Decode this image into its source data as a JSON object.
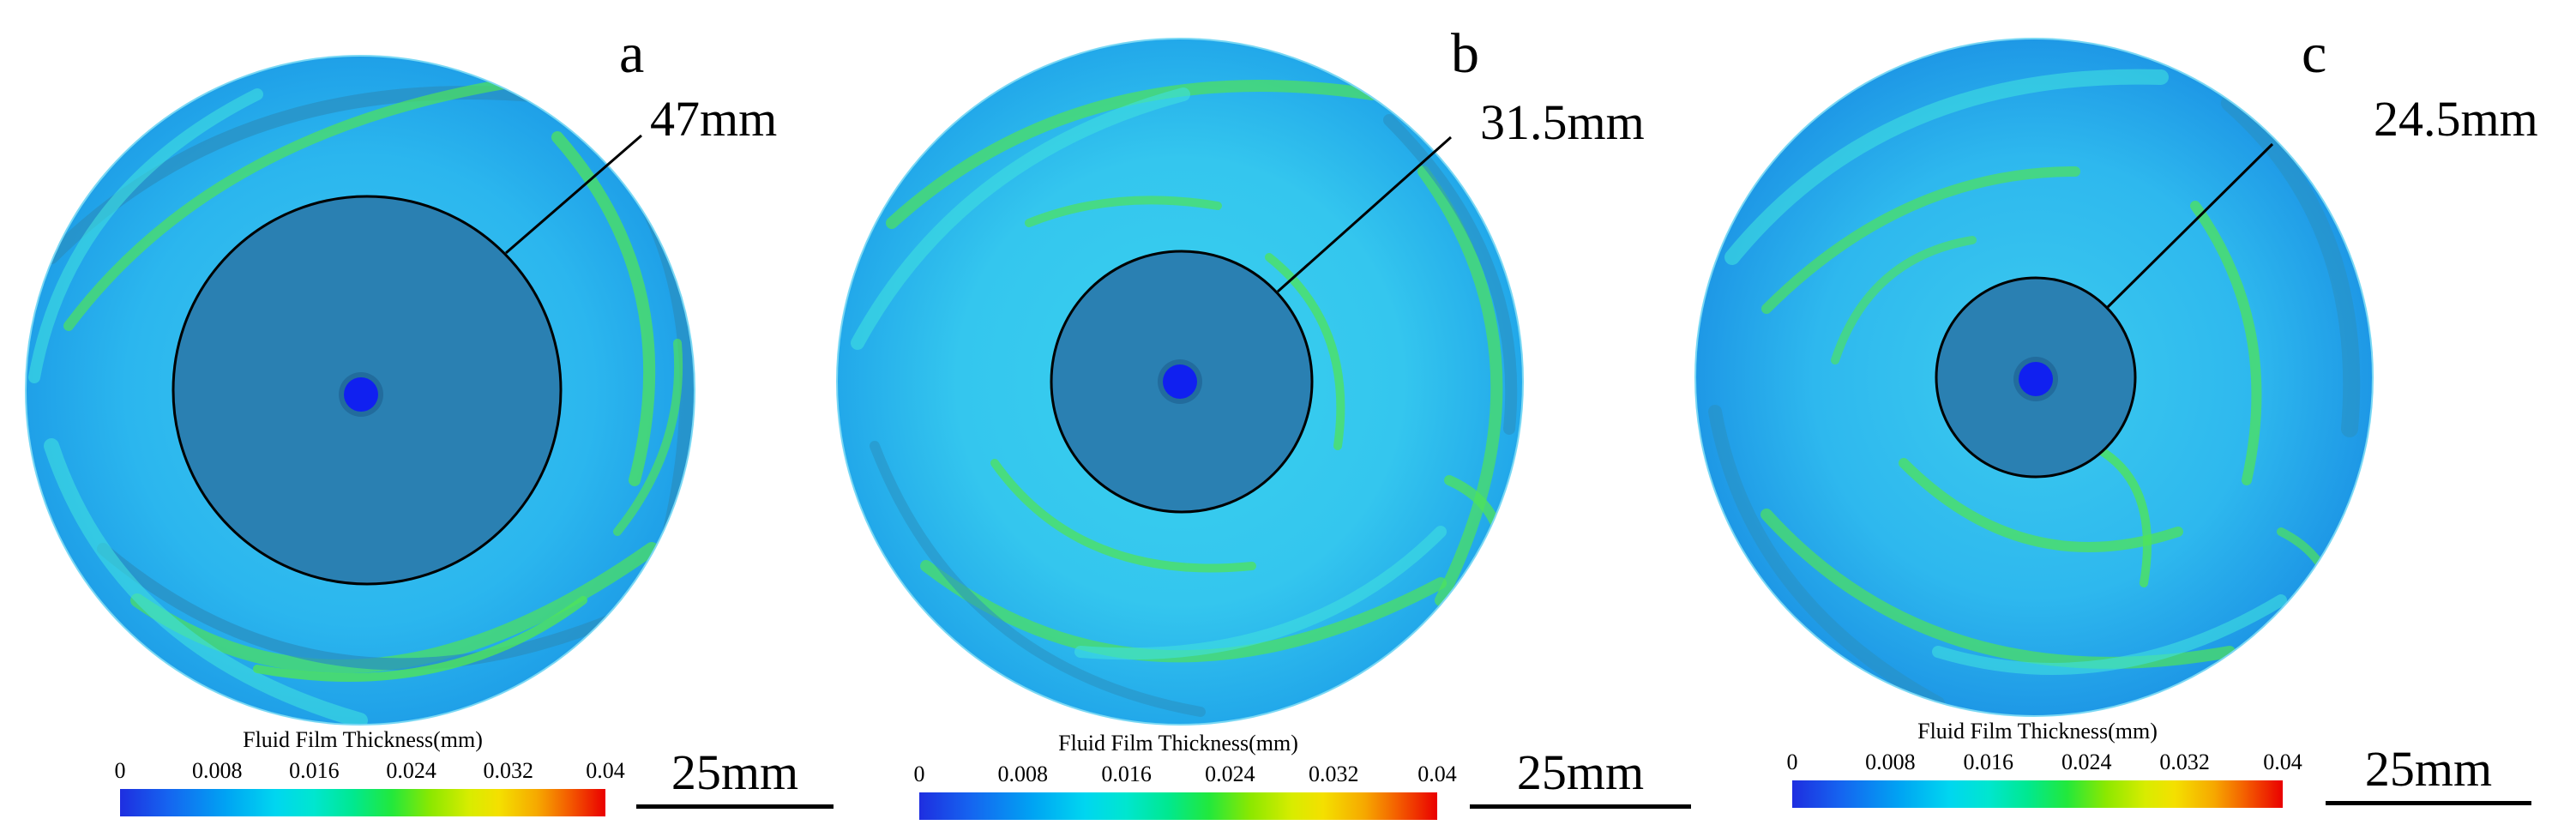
{
  "panels": [
    {
      "label": "a",
      "dimension": "47mm",
      "colorbar": {
        "title": "Fluid Film Thickness(mm)",
        "ticks": [
          "0",
          "0.008",
          "0.016",
          "0.024",
          "0.032",
          "0.04"
        ]
      },
      "scale_bar": "25mm"
    },
    {
      "label": "b",
      "dimension": "31.5mm",
      "colorbar": {
        "title": "Fluid Film Thickness(mm)",
        "ticks": [
          "0",
          "0.008",
          "0.016",
          "0.024",
          "0.032",
          "0.04"
        ]
      },
      "scale_bar": "25mm"
    },
    {
      "label": "c",
      "dimension": "24.5mm",
      "colorbar": {
        "title": "Fluid Film Thickness(mm)",
        "ticks": [
          "0",
          "0.008",
          "0.016",
          "0.024",
          "0.032",
          "0.04"
        ]
      },
      "scale_bar": "25mm"
    }
  ],
  "colors": {
    "disk_base": "#26b4ee",
    "inner_disk": "#2a80b2",
    "center_hole": "#1020f0",
    "streak_green": "#4fe35a",
    "streak_cyan": "#3fe0e0",
    "streak_dark": "#2a8fc0"
  }
}
